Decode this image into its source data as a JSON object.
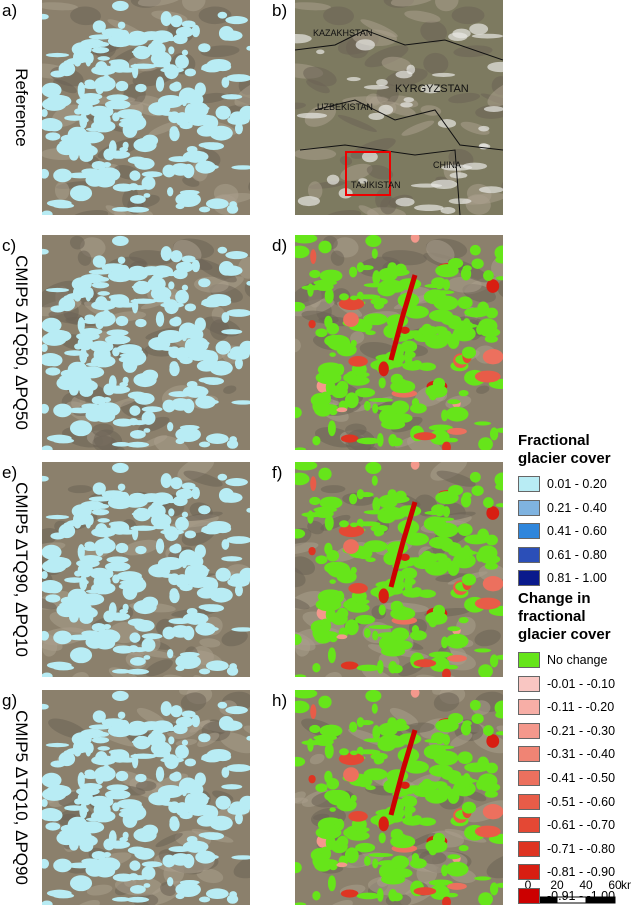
{
  "panels": [
    {
      "letter": "a)",
      "label": "Reference"
    },
    {
      "letter": "b)"
    },
    {
      "letter": "c)",
      "label": "CMIP5 ΔTQ50, ΔPQ50"
    },
    {
      "letter": "d)"
    },
    {
      "letter": "e)",
      "label": "CMIP5 ΔTQ90, ΔPQ10"
    },
    {
      "letter": "f)"
    },
    {
      "letter": "g)",
      "label": "CMIP5 ΔTQ10, ΔPQ90"
    },
    {
      "letter": "h)"
    }
  ],
  "locator_map": {
    "countries": [
      "KAZAKHSTAN",
      "KYRGYZSTAN",
      "UZBEKISTAN",
      "TAJIKISTAN",
      "CHINA"
    ]
  },
  "legend": {
    "cover": {
      "title": "Fractional glacier cover",
      "items": [
        {
          "label": "0.01 - 0.20",
          "color": "#b8ecf4"
        },
        {
          "label": "0.21 - 0.40",
          "color": "#7fb3e0"
        },
        {
          "label": "0.41 - 0.60",
          "color": "#2f86dc"
        },
        {
          "label": "0.61 - 0.80",
          "color": "#2b4fb8"
        },
        {
          "label": "0.81 - 1.00",
          "color": "#0a1a8c"
        }
      ]
    },
    "change": {
      "title": "Change in fractional glacier cover",
      "items": [
        {
          "label": "No change",
          "color": "#66e51a"
        },
        {
          "label": "-0.01 - -0.10",
          "color": "#f9c6c2"
        },
        {
          "label": "-0.11 - -0.20",
          "color": "#f7aea6"
        },
        {
          "label": "-0.21 - -0.30",
          "color": "#f4988c"
        },
        {
          "label": "-0.31 - -0.40",
          "color": "#f08474"
        },
        {
          "label": "-0.41 - -0.50",
          "color": "#ec705e"
        },
        {
          "label": "-0.51 - -0.60",
          "color": "#e85c48"
        },
        {
          "label": "-0.61 - -0.70",
          "color": "#e44834"
        },
        {
          "label": "-0.71 - -0.80",
          "color": "#de3422"
        },
        {
          "label": "-0.81 - -0.90",
          "color": "#d81e12"
        },
        {
          "label": "-0.91 - -1.00",
          "color": "#cc0000"
        }
      ]
    }
  },
  "scale_bar": {
    "ticks": [
      0,
      20,
      40,
      60
    ],
    "unit": "km"
  }
}
